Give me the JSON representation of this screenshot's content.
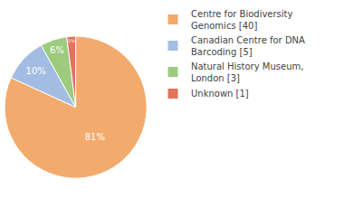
{
  "chart_data": {
    "type": "pie",
    "categories": [
      "Centre for Biodiversity Genomics [40]",
      "Canadian Centre for DNA Barcoding [5]",
      "Natural History Museum, London [3]",
      "Unknown [1]"
    ],
    "values": [
      81,
      10,
      6,
      2
    ],
    "value_labels": [
      "81%",
      "10%",
      "6%",
      "2%"
    ],
    "colors": [
      "#f2ab6d",
      "#a3bde2",
      "#9ccb7e",
      "#e2735c"
    ],
    "data_labels": true,
    "legend": "top right"
  }
}
